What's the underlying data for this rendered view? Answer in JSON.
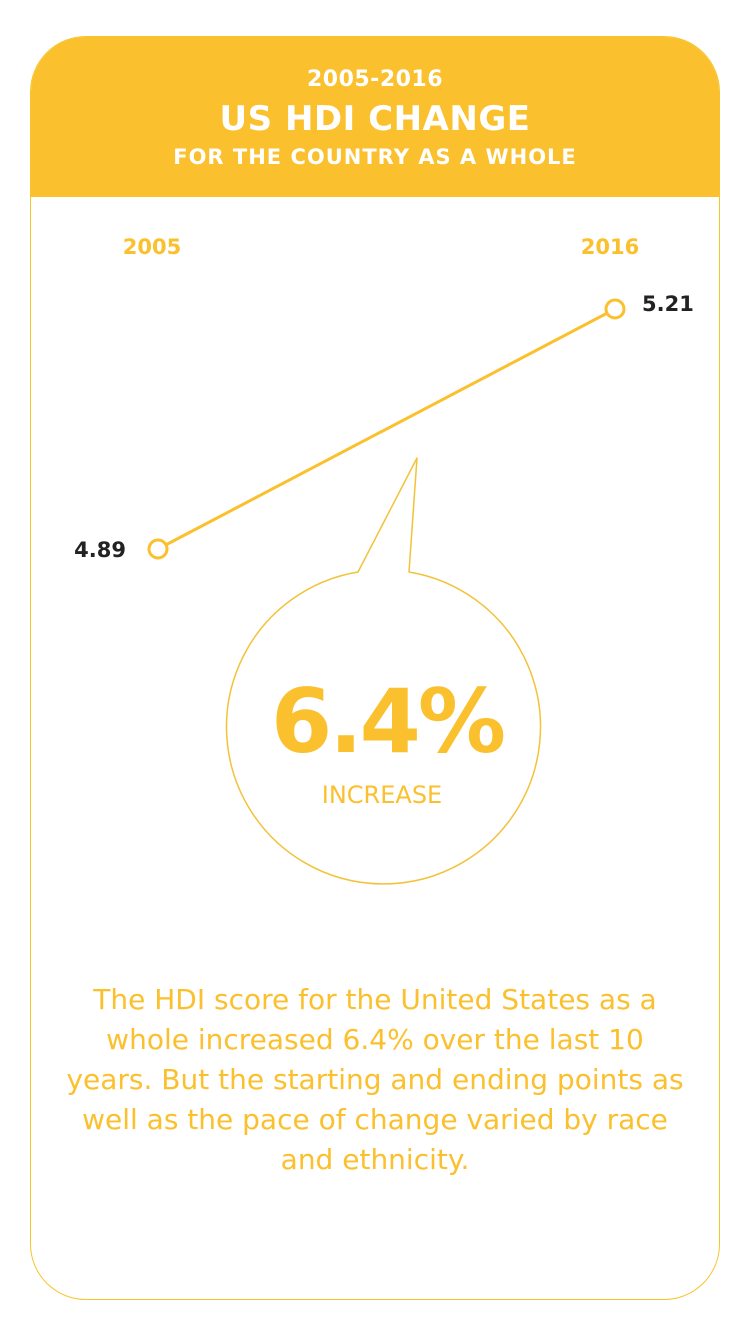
{
  "header": {
    "years": "2005-2016",
    "title": "US HDI CHANGE",
    "subtitle": "FOR THE COUNTRY AS A WHOLE"
  },
  "chart_data": {
    "type": "line",
    "categories": [
      "2005",
      "2016"
    ],
    "series": [
      {
        "values": [
          4.89,
          5.21
        ]
      }
    ],
    "value_labels": [
      "4.89",
      "5.21"
    ],
    "ylim": [
      4.89,
      5.21
    ],
    "grid": false,
    "line_color": "#fbc02d"
  },
  "callout": {
    "value": "6.4%",
    "label": "INCREASE"
  },
  "caption": "The HDI score for the United States as a whole increased 6.4% over the last 10 years. But the starting and ending points as well as the pace of change varied by race and ethnicity.",
  "colors": {
    "accent": "#fbc02d",
    "label_dark": "#222222",
    "header_text": "#ffffff"
  }
}
